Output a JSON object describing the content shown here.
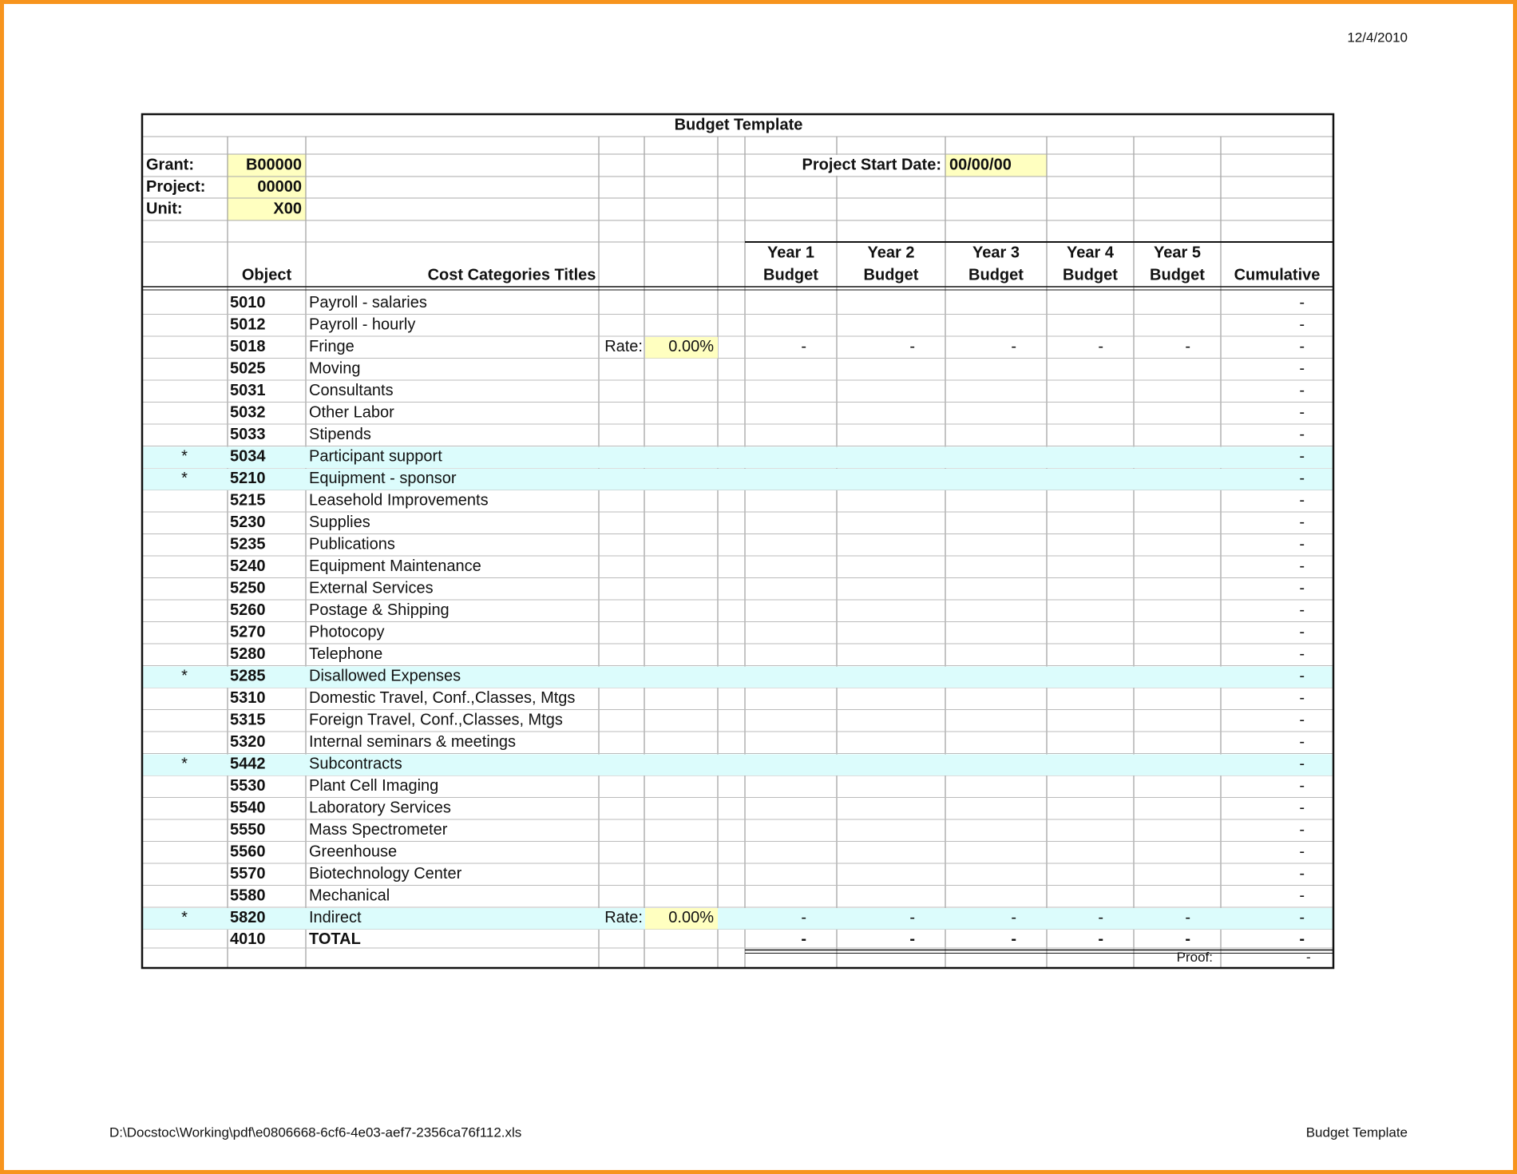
{
  "header": {
    "date": "12/4/2010",
    "title": "Budget Template"
  },
  "info": {
    "grant_label": "Grant:",
    "grant": "B00000",
    "project_label": "Project:",
    "project": "00000",
    "unit_label": "Unit:",
    "unit": "X00",
    "start_date_label": "Project Start Date:",
    "start_date": "00/00/00"
  },
  "columns": {
    "object": "Object",
    "cost_categories": "Cost Categories Titles",
    "years": [
      "Year 1",
      "Year 2",
      "Year 3",
      "Year 4",
      "Year 5"
    ],
    "budgets": [
      "Budget",
      "Budget",
      "Budget",
      "Budget",
      "Budget"
    ],
    "cumulative": "Cumulative"
  },
  "rows": [
    {
      "object": "5010",
      "title": "Payroll - salaries",
      "cumulative": "-"
    },
    {
      "object": "5012",
      "title": "Payroll - hourly",
      "cumulative": "-"
    },
    {
      "object": "5018",
      "title": "Fringe",
      "rate_label": "Rate:",
      "rate": "0.00%",
      "years": [
        "-",
        "-",
        "-",
        "-",
        "-"
      ],
      "cumulative": "-"
    },
    {
      "object": "5025",
      "title": "Moving",
      "cumulative": "-"
    },
    {
      "object": "5031",
      "title": "Consultants",
      "cumulative": "-"
    },
    {
      "object": "5032",
      "title": "Other Labor",
      "cumulative": "-"
    },
    {
      "object": "5033",
      "title": "Stipends",
      "cumulative": "-"
    },
    {
      "mark": "*",
      "object": "5034",
      "title": "Participant support",
      "cumulative": "-"
    },
    {
      "mark": "*",
      "object": "5210",
      "title": "Equipment - sponsor",
      "cumulative": "-"
    },
    {
      "object": "5215",
      "title": "Leasehold Improvements",
      "cumulative": "-"
    },
    {
      "object": "5230",
      "title": "Supplies",
      "cumulative": "-"
    },
    {
      "object": "5235",
      "title": "Publications",
      "cumulative": "-"
    },
    {
      "object": "5240",
      "title": "Equipment Maintenance",
      "cumulative": "-"
    },
    {
      "object": "5250",
      "title": "External Services",
      "cumulative": "-"
    },
    {
      "object": "5260",
      "title": "Postage & Shipping",
      "cumulative": "-"
    },
    {
      "object": "5270",
      "title": "Photocopy",
      "cumulative": "-"
    },
    {
      "object": "5280",
      "title": "Telephone",
      "cumulative": "-"
    },
    {
      "mark": "*",
      "object": "5285",
      "title": "Disallowed Expenses",
      "cumulative": "-"
    },
    {
      "object": "5310",
      "title": "Domestic Travel, Conf.,Classes, Mtgs",
      "cumulative": "-"
    },
    {
      "object": "5315",
      "title": "Foreign Travel, Conf.,Classes, Mtgs",
      "cumulative": "-"
    },
    {
      "object": "5320",
      "title": "Internal seminars & meetings",
      "cumulative": "-"
    },
    {
      "mark": "*",
      "object": "5442",
      "title": "Subcontracts",
      "cumulative": "-"
    },
    {
      "object": "5530",
      "title": "Plant Cell Imaging",
      "cumulative": "-"
    },
    {
      "object": "5540",
      "title": "Laboratory Services",
      "cumulative": "-"
    },
    {
      "object": "5550",
      "title": "Mass Spectrometer",
      "cumulative": "-"
    },
    {
      "object": "5560",
      "title": "Greenhouse",
      "cumulative": "-"
    },
    {
      "object": "5570",
      "title": "Biotechnology Center",
      "cumulative": "-"
    },
    {
      "object": "5580",
      "title": "Mechanical",
      "cumulative": "-"
    },
    {
      "mark": "*",
      "object": "5820",
      "title": "Indirect",
      "rate_label": "Rate:",
      "rate": "0.00%",
      "years": [
        "-",
        "-",
        "-",
        "-",
        "-"
      ],
      "cumulative": "-"
    }
  ],
  "total": {
    "object": "4010",
    "title": "TOTAL",
    "years": [
      "-",
      "-",
      "-",
      "-",
      "-"
    ],
    "cumulative": "-"
  },
  "proof": {
    "label": "Proof:",
    "value": "-"
  },
  "footer": {
    "path": "D:\\Docstoc\\Working\\pdf\\e0806668-6cf6-4e03-aef7-2356ca76f112.xls",
    "title": "Budget Template"
  }
}
